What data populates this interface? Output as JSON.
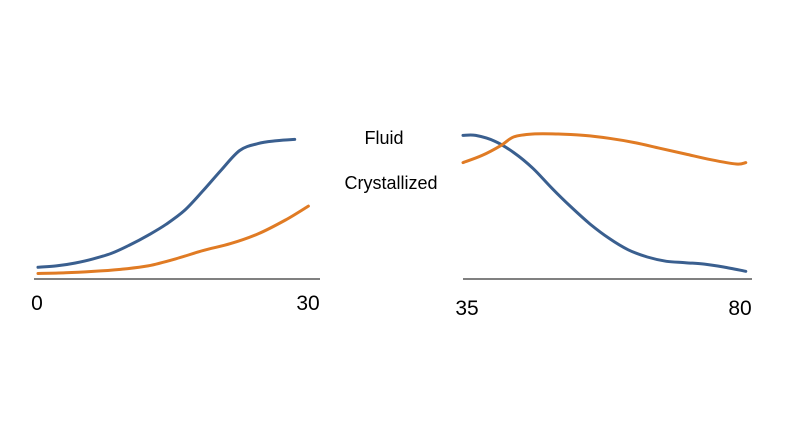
{
  "chart_data": [
    {
      "type": "line",
      "title": "",
      "xlabel": "",
      "ylabel": "",
      "x_ticks": [
        "0",
        "30"
      ],
      "xlim": [
        0,
        30
      ],
      "ylim": [
        0,
        1
      ],
      "grid": false,
      "legend": "none",
      "series": [
        {
          "key": "fluid",
          "color": "#3a5f8f",
          "x": [
            0,
            2,
            4,
            6,
            8,
            10,
            12,
            14,
            16,
            18,
            20,
            22,
            24,
            26,
            28
          ],
          "y": [
            0.07,
            0.08,
            0.1,
            0.13,
            0.17,
            0.23,
            0.3,
            0.38,
            0.48,
            0.62,
            0.77,
            0.91,
            0.96,
            0.98,
            0.99
          ]
        },
        {
          "key": "crystallized",
          "color": "#e07b24",
          "x": [
            0,
            3,
            6,
            9,
            12,
            15,
            18,
            21,
            24,
            27,
            29.5
          ],
          "y": [
            0.025,
            0.03,
            0.04,
            0.055,
            0.08,
            0.13,
            0.19,
            0.24,
            0.31,
            0.41,
            0.51
          ]
        }
      ]
    },
    {
      "type": "line",
      "title": "",
      "xlabel": "",
      "ylabel": "",
      "x_ticks": [
        "35",
        "80"
      ],
      "xlim": [
        35,
        80
      ],
      "ylim": [
        0,
        1
      ],
      "grid": false,
      "legend": "none",
      "series": [
        {
          "key": "fluid",
          "color": "#3a5f8f",
          "x": [
            35,
            37,
            40,
            43,
            46,
            49,
            52,
            55,
            58,
            61,
            64,
            67,
            70,
            73,
            76,
            79.5
          ],
          "y": [
            0.99,
            0.99,
            0.95,
            0.87,
            0.76,
            0.62,
            0.49,
            0.37,
            0.27,
            0.19,
            0.14,
            0.11,
            0.1,
            0.09,
            0.07,
            0.04
          ]
        },
        {
          "key": "crystallized",
          "color": "#e07b24",
          "x": [
            35,
            38,
            41,
            43,
            46,
            50,
            54,
            58,
            62,
            66,
            70,
            74,
            78,
            79.5
          ],
          "y": [
            0.8,
            0.85,
            0.92,
            0.98,
            1.0,
            1.0,
            0.99,
            0.97,
            0.94,
            0.9,
            0.86,
            0.82,
            0.79,
            0.8
          ]
        }
      ]
    }
  ],
  "legend": {
    "fluid_label": "Fluid",
    "crystallized_label": "Crystallized"
  }
}
